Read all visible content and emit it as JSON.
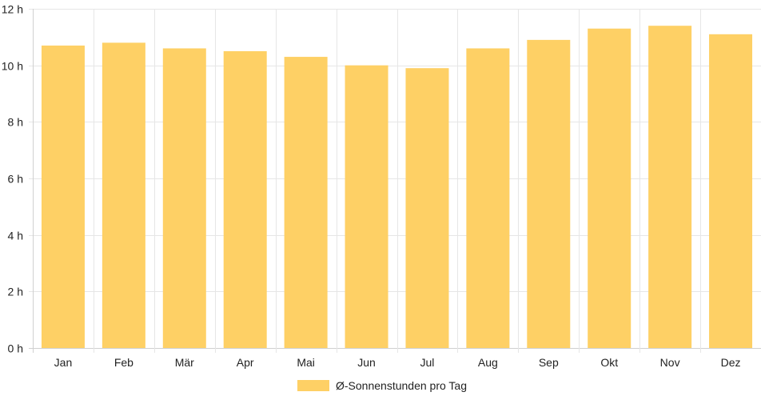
{
  "chart_data": {
    "type": "bar",
    "categories": [
      "Jan",
      "Feb",
      "Mär",
      "Apr",
      "Mai",
      "Jun",
      "Jul",
      "Aug",
      "Sep",
      "Okt",
      "Nov",
      "Dez"
    ],
    "series": [
      {
        "name": "Ø-Sonnenstunden pro Tag",
        "color": "#fed065",
        "values": [
          10.7,
          10.8,
          10.6,
          10.5,
          10.3,
          10.0,
          9.9,
          10.6,
          10.9,
          11.3,
          11.4,
          11.1
        ]
      }
    ],
    "ylim": [
      0,
      12
    ],
    "yticks": [
      0,
      2,
      4,
      6,
      8,
      10,
      12
    ],
    "ytick_suffix": " h",
    "grid": true,
    "legend_position": "bottom"
  }
}
